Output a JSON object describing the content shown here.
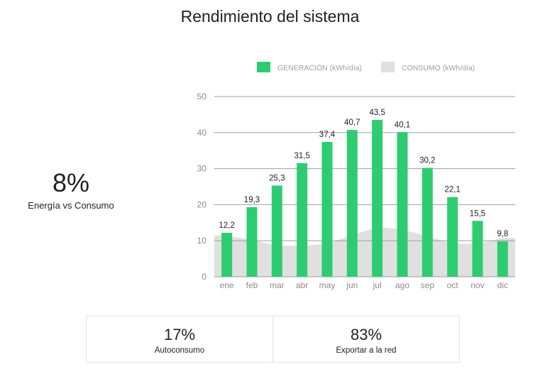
{
  "title": "Rendimiento del sistema",
  "kpi": {
    "value": "8%",
    "label": "Energía vs Consumo"
  },
  "stats": [
    {
      "value": "17%",
      "label": "Autoconsumo"
    },
    {
      "value": "83%",
      "label": "Exportar a la red"
    }
  ],
  "colors": {
    "generation": "#2ecc71",
    "consumption": "#e0e0e0",
    "grid": "#9e9e9e"
  },
  "chart_data": {
    "type": "bar",
    "categories": [
      "ene",
      "feb",
      "mar",
      "abr",
      "may",
      "jun",
      "jul",
      "ago",
      "sep",
      "oct",
      "nov",
      "dic"
    ],
    "series": [
      {
        "name": "GENERACIÓN (kWh/día)",
        "type": "bar",
        "values": [
          12.2,
          19.3,
          25.3,
          31.5,
          37.4,
          40.7,
          43.5,
          40.1,
          30.2,
          22.1,
          15.5,
          9.8
        ]
      },
      {
        "name": "CONSUMO (kWh/día)",
        "type": "area",
        "values": [
          11.5,
          10.2,
          8.7,
          8.5,
          9.2,
          11.5,
          13.8,
          13.2,
          11.2,
          9.2,
          9.1,
          10.8
        ]
      }
    ],
    "value_labels": [
      "12,2",
      "19,3",
      "25,3",
      "31,5",
      "37,4",
      "40,7",
      "43,5",
      "40,1",
      "30,2",
      "22,1",
      "15,5",
      "9,8"
    ],
    "yticks": [
      "0",
      "10",
      "20",
      "30",
      "40",
      "50"
    ],
    "ylim": [
      0,
      50
    ],
    "legend": "top",
    "grid": true
  }
}
